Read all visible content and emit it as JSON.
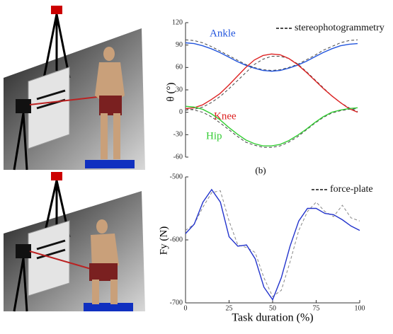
{
  "chart_data": [
    {
      "type": "line",
      "ylabel": "θ (°)",
      "caption": "(b)",
      "x": [
        0,
        5,
        10,
        15,
        20,
        25,
        30,
        35,
        40,
        45,
        50,
        55,
        60,
        65,
        70,
        75,
        80,
        85,
        90,
        95,
        100
      ],
      "xlim": [
        0,
        100
      ],
      "ylim": [
        -60,
        120
      ],
      "yticks": [
        120,
        90,
        60,
        30,
        0,
        -30,
        -60
      ],
      "series": [
        {
          "name": "Ankle",
          "color": "#2255dd",
          "values": [
            93,
            92,
            89,
            85,
            80,
            74,
            68,
            63,
            59,
            56,
            55,
            56,
            59,
            63,
            68,
            74,
            80,
            85,
            89,
            91,
            92
          ]
        },
        {
          "name": "Knee",
          "color": "#dd2222",
          "values": [
            5,
            6,
            10,
            17,
            25,
            36,
            48,
            60,
            70,
            76,
            78,
            77,
            72,
            64,
            54,
            43,
            32,
            22,
            13,
            5,
            0
          ]
        },
        {
          "name": "Hip",
          "color": "#33cc33",
          "values": [
            8,
            7,
            4,
            -2,
            -10,
            -20,
            -29,
            -37,
            -42,
            -45,
            -45,
            -43,
            -38,
            -31,
            -23,
            -14,
            -6,
            0,
            3,
            5,
            6
          ]
        }
      ],
      "reference": {
        "name": "stereophotogrammetry",
        "color": "#444444",
        "lines": [
          [
            97,
            96,
            93,
            88,
            82,
            76,
            70,
            64,
            60,
            57,
            56,
            57,
            60,
            64,
            70,
            76,
            83,
            88,
            93,
            96,
            97
          ],
          [
            3,
            4,
            7,
            13,
            21,
            31,
            42,
            53,
            64,
            71,
            75,
            75,
            72,
            65,
            55,
            44,
            33,
            22,
            13,
            6,
            1
          ],
          [
            5,
            3,
            0,
            -6,
            -14,
            -23,
            -32,
            -40,
            -44,
            -47,
            -47,
            -45,
            -40,
            -33,
            -24,
            -15,
            -7,
            -1,
            2,
            4,
            5
          ]
        ]
      }
    },
    {
      "type": "line",
      "xlabel": "Task duration (%)",
      "ylabel": "Fy (N)",
      "x": [
        0,
        5,
        10,
        15,
        20,
        25,
        30,
        35,
        40,
        45,
        50,
        55,
        60,
        65,
        70,
        75,
        80,
        85,
        90,
        95,
        100
      ],
      "xlim": [
        0,
        100
      ],
      "xticks": [
        0,
        25,
        50,
        75,
        100
      ],
      "ylim": [
        -700,
        -500
      ],
      "yticks": [
        -500,
        -600,
        -700
      ],
      "series": [
        {
          "color": "#2233cc",
          "values": [
            -590,
            -575,
            -540,
            -520,
            -540,
            -595,
            -610,
            -608,
            -630,
            -675,
            -695,
            -660,
            -610,
            -570,
            -550,
            -550,
            -558,
            -560,
            -568,
            -578,
            -585
          ]
        }
      ],
      "reference": {
        "name": "force-plate",
        "color": "#888888",
        "lines": [
          [
            -585,
            -575,
            -548,
            -525,
            -522,
            -570,
            -608,
            -612,
            -620,
            -660,
            -690,
            -680,
            -635,
            -585,
            -555,
            -540,
            -555,
            -563,
            -545,
            -565,
            -570
          ]
        ]
      }
    }
  ]
}
